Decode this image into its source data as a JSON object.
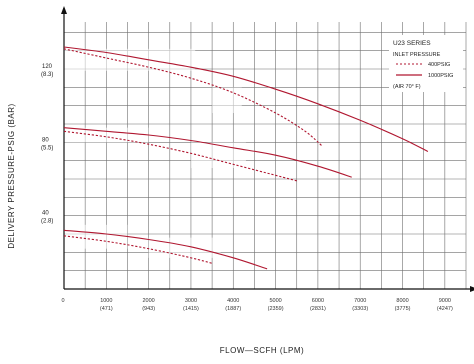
{
  "chart_data": {
    "type": "line",
    "title": "",
    "xlabel": "FLOW—SCFH (LPM)",
    "ylabel": "DELIVERY PRESSURE-PSIG (BAR)",
    "xlim": [
      0,
      9500
    ],
    "ylim": [
      0,
      150
    ],
    "x_ticks": [
      {
        "value": 1000,
        "line1": "1000",
        "line2": "(471)"
      },
      {
        "value": 2000,
        "line1": "2000",
        "line2": "(943)"
      },
      {
        "value": 3000,
        "line1": "3000",
        "line2": "(1415)"
      },
      {
        "value": 4000,
        "line1": "4000",
        "line2": "(1887)"
      },
      {
        "value": 5000,
        "line1": "5000",
        "line2": "(2359)"
      },
      {
        "value": 6000,
        "line1": "6000",
        "line2": "(2831)"
      },
      {
        "value": 7000,
        "line1": "7000",
        "line2": "(3303)"
      },
      {
        "value": 8000,
        "line1": "8000",
        "line2": "(3775)"
      },
      {
        "value": 9000,
        "line1": "9000",
        "line2": "(4247)"
      }
    ],
    "x_zero_label": "0",
    "y_ticks": [
      {
        "value": 120,
        "line1": "120",
        "line2": "(8.3)"
      },
      {
        "value": 80,
        "line1": "80",
        "line2": "(5.5)"
      },
      {
        "value": 40,
        "line1": "40",
        "line2": "(2.8)"
      }
    ],
    "grid": true,
    "legend": {
      "position": "top-right",
      "title": "U23 SERIES",
      "subtitle": "INLET PRESSURE",
      "entries": [
        {
          "label": "400PSIG",
          "style": "dashed"
        },
        {
          "label": "1000PSIG",
          "style": "solid"
        }
      ],
      "note": "(AIR 70° F)"
    },
    "series": [
      {
        "name": "1000PSIG",
        "style": "solid",
        "x": [
          0,
          1000,
          2000,
          3000,
          4000,
          5000,
          6000,
          7000,
          8000,
          8600
        ],
        "y": [
          132,
          129,
          125,
          121,
          116,
          109,
          101,
          92,
          82,
          75
        ]
      },
      {
        "name": "400PSIG",
        "style": "dashed",
        "x": [
          0,
          1000,
          2000,
          3000,
          4000,
          5000,
          5700,
          6100
        ],
        "y": [
          131,
          126,
          121,
          115,
          107,
          96,
          86,
          78
        ]
      },
      {
        "name": "1000PSIG",
        "style": "solid",
        "x": [
          0,
          1000,
          2000,
          3000,
          4000,
          5000,
          6000,
          6800
        ],
        "y": [
          88,
          86,
          84,
          81,
          77,
          73,
          67,
          61
        ]
      },
      {
        "name": "400PSIG",
        "style": "dashed",
        "x": [
          0,
          1000,
          2000,
          3000,
          4000,
          5000,
          5500
        ],
        "y": [
          86,
          83,
          79,
          74,
          68,
          62,
          59
        ]
      },
      {
        "name": "1000PSIG",
        "style": "solid",
        "x": [
          0,
          1000,
          2000,
          3000,
          4000,
          4800
        ],
        "y": [
          32,
          30,
          27,
          23,
          17,
          11
        ]
      },
      {
        "name": "400PSIG",
        "style": "dashed",
        "x": [
          0,
          1000,
          2000,
          3000,
          3500
        ],
        "y": [
          29,
          26,
          22,
          17,
          14
        ]
      }
    ],
    "colors": {
      "curve": "#b01730",
      "grid": "#6f6f6f",
      "axis": "#111111"
    }
  }
}
